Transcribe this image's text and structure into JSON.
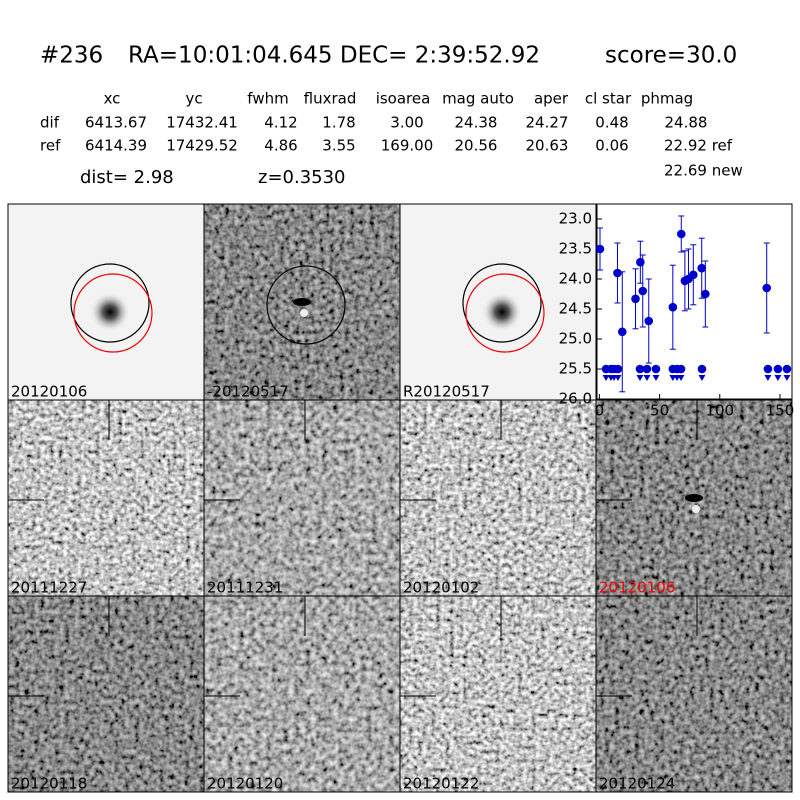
{
  "header": {
    "id": "#236",
    "coords": "RA=10:01:04.645 DEC= 2:39:52.92",
    "score": "score=30.0"
  },
  "table": {
    "columns": [
      "xc",
      "yc",
      "fwhm",
      "fluxrad",
      "isoarea",
      "mag auto",
      "aper",
      "cl star",
      "phmag"
    ],
    "rows": [
      [
        "dif",
        "6413.67",
        "17432.41",
        "4.12",
        "1.78",
        "3.00",
        "24.38",
        "24.27",
        "0.48",
        "24.88"
      ],
      [
        "ref",
        "6414.39",
        "17429.52",
        "4.86",
        "3.55",
        "169.00",
        "20.56",
        "20.63",
        "0.06",
        "22.92 ref"
      ]
    ],
    "note": "22.69 new"
  },
  "dist": "dist=  2.98",
  "z": "z=0.3530",
  "stamps": [
    "20120106",
    "-20120517",
    "R20120517",
    "20111227",
    "20111231",
    "20120102",
    "20120106",
    "20120118",
    "20120120",
    "20120122",
    "20120124"
  ],
  "chart_data": {
    "type": "scatter",
    "xlim": [
      -2,
      160
    ],
    "xticks": [
      0,
      50,
      100,
      150
    ],
    "ylim": [
      22.75,
      26.0
    ],
    "invert_y": true,
    "yticks": [
      {
        "value": 23,
        "label": "23.0"
      },
      23.5,
      {
        "value": 24,
        "label": "24.0"
      },
      24.5,
      {
        "value": 25,
        "label": "25.0"
      },
      25.5,
      {
        "value": 26,
        "label": "26.0"
      }
    ],
    "series": [
      {
        "color": "#0000cc",
        "marker": "point",
        "x": [
          0.5,
          15,
          19,
          30,
          34,
          36,
          41,
          61,
          68,
          71,
          74,
          78,
          85,
          88,
          139
        ],
        "values": [
          23.5,
          23.9,
          24.88,
          24.33,
          23.72,
          24.2,
          24.7,
          24.47,
          23.25,
          24.03,
          24.0,
          23.93,
          23.82,
          24.25,
          24.15
        ],
        "errors": [
          0.35,
          0.5,
          1.0,
          0.5,
          0.35,
          0.6,
          0.7,
          0.7,
          0.3,
          0.5,
          0.5,
          0.5,
          0.5,
          0.55,
          0.75
        ]
      },
      {
        "color": "#0000cc",
        "marker": "limit",
        "x": [
          5.5,
          9.6,
          12.1,
          15.4,
          33.7,
          39.5,
          47,
          61,
          64.5,
          67.8,
          85.2,
          140,
          148.3,
          155.8
        ],
        "values": [
          25.5,
          25.5,
          25.5,
          25.5,
          25.5,
          25.5,
          25.5,
          25.5,
          25.5,
          25.5,
          25.5,
          25.5,
          25.5,
          25.5
        ]
      }
    ]
  }
}
